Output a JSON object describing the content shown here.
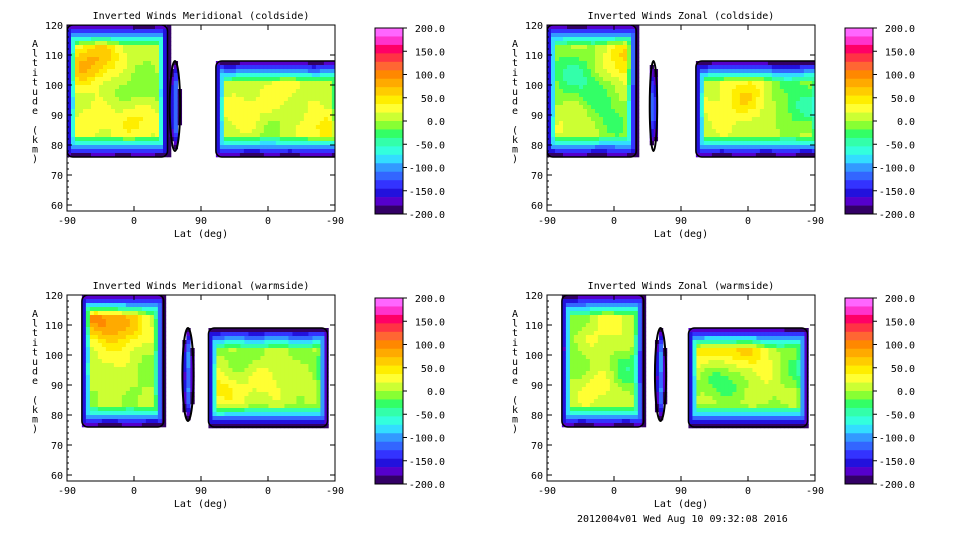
{
  "footer": "2012004v01 Wed Aug 10 09:32:08 2016",
  "colorbar": {
    "labels": [
      "200.0",
      "150.0",
      "100.0",
      "50.0",
      "0.0",
      "-50.0",
      "-100.0",
      "-150.0",
      "-200.0"
    ],
    "colors": [
      "#ff66ff",
      "#ff33cc",
      "#ff0066",
      "#ff3344",
      "#ff6633",
      "#ff8800",
      "#ffaa00",
      "#ffcc00",
      "#ffee00",
      "#ffff33",
      "#ccff33",
      "#88ff33",
      "#33ff66",
      "#33ffaa",
      "#33ffdd",
      "#33ddff",
      "#3399ff",
      "#3366ff",
      "#3333ff",
      "#2211dd",
      "#5500cc",
      "#330066"
    ]
  },
  "chart_data": [
    {
      "type": "heatmap",
      "title": "Inverted Winds Meridional (coldside)",
      "xlabel": "Lat (deg)",
      "ylabel": "Altitude (km)",
      "xticks": [
        "-90",
        "0",
        "90",
        "0",
        "-90"
      ],
      "yticks": [
        "60",
        "70",
        "80",
        "90",
        "100",
        "110",
        "120"
      ],
      "ylim": [
        58,
        120
      ],
      "zlim": [
        -200,
        200
      ],
      "regions": [
        {
          "x": [
            -90,
            45
          ],
          "y": [
            76,
            120
          ],
          "hot": [
            [
              -70,
              106,
              60
            ],
            [
              -40,
              110,
              45
            ],
            [
              5,
              88,
              40
            ],
            [
              -55,
              88,
              25
            ]
          ],
          "cold": [
            [
              10,
              99,
              -20
            ],
            [
              -20,
              96,
              -5
            ]
          ]
        },
        {
          "x": [
            48,
            62
          ],
          "y": [
            78,
            108
          ],
          "hot": [],
          "cold": [
            [
              55,
              93,
              -110
            ]
          ]
        },
        {
          "x": [
            110,
            280
          ],
          "y": [
            76,
            108
          ],
          "hot": [
            [
              150,
              90,
              35
            ],
            [
              200,
              98,
              25
            ],
            [
              250,
              86,
              45
            ]
          ],
          "cold": [
            [
              170,
              86,
              -15
            ],
            [
              230,
              90,
              -10
            ]
          ]
        }
      ]
    },
    {
      "type": "heatmap",
      "title": "Inverted Winds Zonal (coldside)",
      "xlabel": "Lat (deg)",
      "ylabel": "Altitude (km)",
      "xticks": [
        "-90",
        "0",
        "90",
        "0",
        "-90"
      ],
      "yticks": [
        "60",
        "70",
        "80",
        "90",
        "100",
        "110",
        "120"
      ],
      "ylim": [
        58,
        120
      ],
      "zlim": [
        -200,
        200
      ],
      "regions": [
        {
          "x": [
            -90,
            30
          ],
          "y": [
            76,
            120
          ],
          "hot": [
            [
              10,
              105,
              35
            ],
            [
              -50,
              88,
              20
            ],
            [
              25,
              112,
              40
            ]
          ],
          "cold": [
            [
              -60,
              104,
              -45
            ],
            [
              -25,
              98,
              -35
            ],
            [
              -5,
              88,
              -30
            ]
          ]
        },
        {
          "x": [
            48,
            58
          ],
          "y": [
            78,
            108
          ],
          "hot": [],
          "cold": [
            [
              53,
              94,
              -60
            ]
          ]
        },
        {
          "x": [
            110,
            280
          ],
          "y": [
            76,
            108
          ],
          "hot": [
            [
              180,
              97,
              50
            ],
            [
              145,
              90,
              20
            ]
          ],
          "cold": [
            [
              260,
              92,
              -45
            ],
            [
              230,
              100,
              -25
            ]
          ]
        }
      ]
    },
    {
      "type": "heatmap",
      "title": "Inverted Winds Meridional (warmside)",
      "xlabel": "Lat (deg)",
      "ylabel": "Altitude (km)",
      "xticks": [
        "-90",
        "0",
        "90",
        "0",
        "-90"
      ],
      "yticks": [
        "60",
        "70",
        "80",
        "90",
        "100",
        "110",
        "120"
      ],
      "ylim": [
        58,
        120
      ],
      "zlim": [
        -200,
        200
      ],
      "regions": [
        {
          "x": [
            -70,
            40
          ],
          "y": [
            76,
            120
          ],
          "hot": [
            [
              -50,
              112,
              85
            ],
            [
              -10,
              110,
              60
            ],
            [
              -20,
              98,
              25
            ]
          ],
          "cold": [
            [
              10,
              96,
              -20
            ],
            [
              -40,
              86,
              -5
            ]
          ]
        },
        {
          "x": [
            65,
            80
          ],
          "y": [
            78,
            109
          ],
          "hot": [],
          "cold": [
            [
              72,
              93,
              -110
            ]
          ]
        },
        {
          "x": [
            100,
            260
          ],
          "y": [
            76,
            109
          ],
          "hot": [
            [
              115,
              88,
              40
            ],
            [
              175,
              92,
              25
            ]
          ],
          "cold": [
            [
              150,
              98,
              -20
            ],
            [
              230,
              100,
              -10
            ]
          ]
        }
      ]
    },
    {
      "type": "heatmap",
      "title": "Inverted Winds Zonal (warmside)",
      "xlabel": "Lat (deg)",
      "ylabel": "Altitude (km)",
      "xticks": [
        "-90",
        "0",
        "90",
        "0",
        "-90"
      ],
      "yticks": [
        "60",
        "70",
        "80",
        "90",
        "100",
        "110",
        "120"
      ],
      "ylim": [
        58,
        120
      ],
      "zlim": [
        -200,
        200
      ],
      "regions": [
        {
          "x": [
            -70,
            40
          ],
          "y": [
            76,
            120
          ],
          "hot": [
            [
              -30,
              104,
              25
            ],
            [
              -20,
              90,
              30
            ],
            [
              10,
              113,
              20
            ]
          ],
          "cold": [
            [
              -50,
              98,
              -30
            ],
            [
              20,
              95,
              -40
            ],
            [
              -60,
              110,
              -20
            ]
          ]
        },
        {
          "x": [
            55,
            70
          ],
          "y": [
            78,
            109
          ],
          "hot": [],
          "cold": [
            [
              62,
              93,
              -110
            ]
          ]
        },
        {
          "x": [
            100,
            260
          ],
          "y": [
            76,
            109
          ],
          "hot": [
            [
              170,
              103,
              60
            ],
            [
              120,
              102,
              40
            ],
            [
              200,
              95,
              25
            ]
          ],
          "cold": [
            [
              150,
              92,
              -40
            ],
            [
              240,
              96,
              -30
            ]
          ]
        }
      ]
    }
  ]
}
